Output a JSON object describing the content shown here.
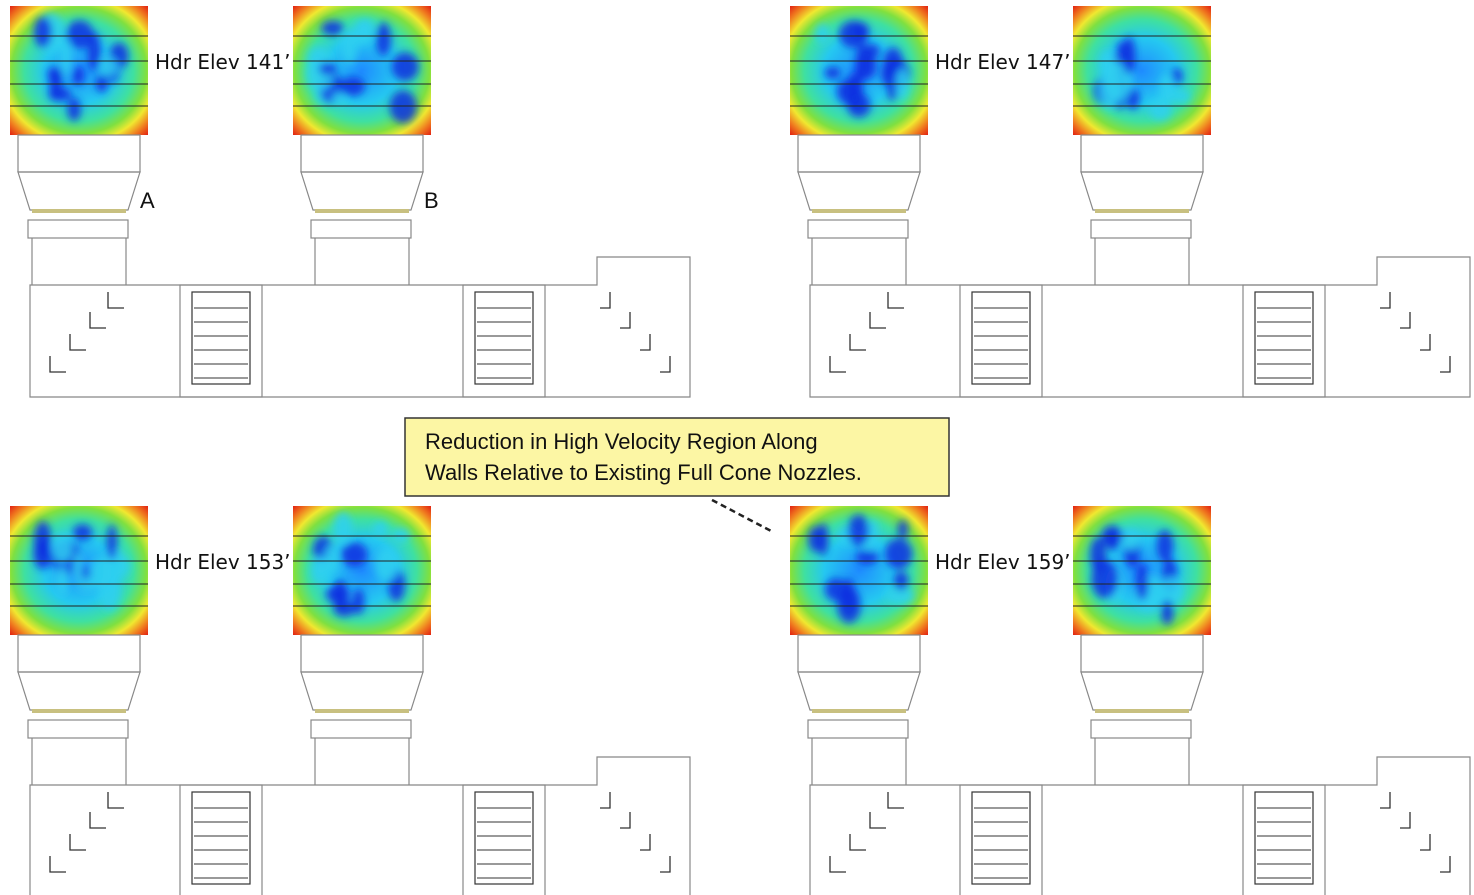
{
  "panels": [
    {
      "label": "Hdr Elev 141’",
      "markers": [
        "A",
        "B"
      ]
    },
    {
      "label": "Hdr Elev 147’"
    },
    {
      "label": "Hdr Elev 153’"
    },
    {
      "label": "Hdr Elev 159’"
    }
  ],
  "callout": {
    "lines": [
      "Reduction in High Velocity Region Along",
      "Walls Relative to Existing Full Cone Nozzles."
    ]
  }
}
